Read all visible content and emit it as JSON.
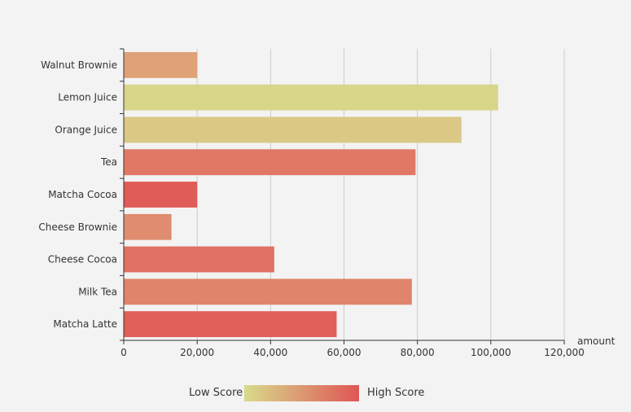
{
  "chart_data": {
    "type": "bar",
    "orientation": "horizontal",
    "categories": [
      "Walnut Brownie",
      "Lemon Juice",
      "Orange Juice",
      "Tea",
      "Matcha Cocoa",
      "Cheese Brownie",
      "Cheese Cocoa",
      "Milk Tea",
      "Matcha Latte"
    ],
    "values": [
      20000,
      102000,
      92000,
      79500,
      20000,
      13000,
      41000,
      78500,
      58000
    ],
    "scores": [
      45,
      5,
      15,
      75,
      95,
      60,
      80,
      65,
      92
    ],
    "xlabel": "amount",
    "xlim": [
      0,
      120000
    ],
    "xticks": [
      0,
      20000,
      40000,
      60000,
      80000,
      100000,
      120000
    ],
    "xtick_labels": [
      "0",
      "20,000",
      "40,000",
      "60,000",
      "80,000",
      "100,000",
      "120,000"
    ],
    "grid": "vertical",
    "visual_map": {
      "low_label": "Low Score",
      "high_label": "High Score",
      "low_color": "#d8db8b",
      "mid_color": "#e09a75",
      "high_color": "#e05555",
      "placement": "bottom"
    }
  }
}
